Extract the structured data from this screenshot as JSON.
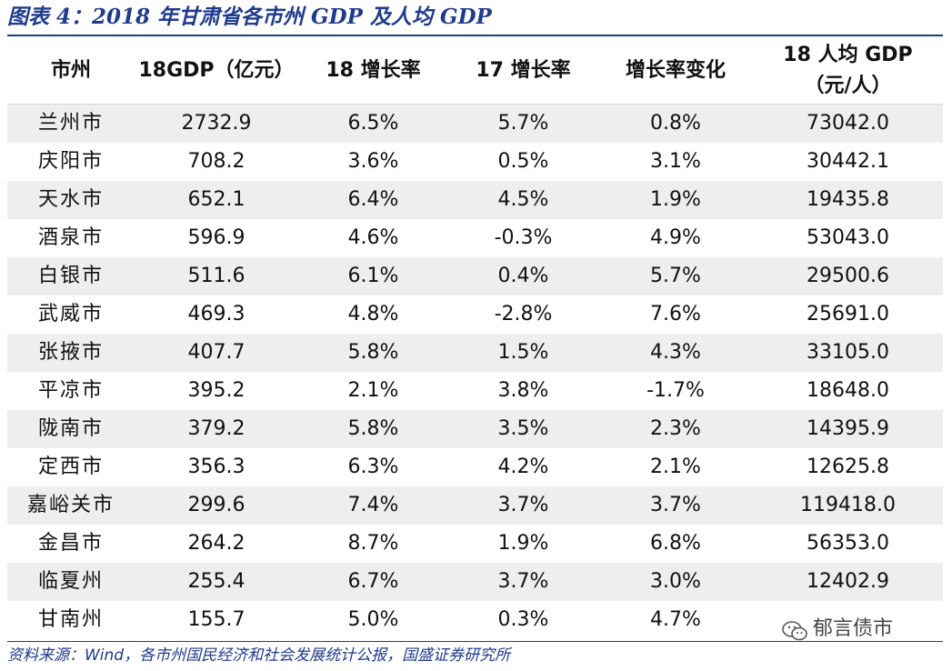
{
  "title": "图表 4：2018 年甘肃省各市州 GDP 及人均 GDP",
  "table": {
    "headers": [
      "市州",
      "18GDP（亿元）",
      "18 增长率",
      "17 增长率",
      "增长率变化"
    ],
    "header_last_line1": "18 人均 GDP",
    "header_last_line2": "（元/人）",
    "rows": [
      [
        "兰州市",
        "2732.9",
        "6.5%",
        "5.7%",
        "0.8%",
        "73042.0"
      ],
      [
        "庆阳市",
        "708.2",
        "3.6%",
        "0.5%",
        "3.1%",
        "30442.1"
      ],
      [
        "天水市",
        "652.1",
        "6.4%",
        "4.5%",
        "1.9%",
        "19435.8"
      ],
      [
        "酒泉市",
        "596.9",
        "4.6%",
        "-0.3%",
        "4.9%",
        "53043.0"
      ],
      [
        "白银市",
        "511.6",
        "6.1%",
        "0.4%",
        "5.7%",
        "29500.6"
      ],
      [
        "武威市",
        "469.3",
        "4.8%",
        "-2.8%",
        "7.6%",
        "25691.0"
      ],
      [
        "张掖市",
        "407.7",
        "5.8%",
        "1.5%",
        "4.3%",
        "33105.0"
      ],
      [
        "平凉市",
        "395.2",
        "2.1%",
        "3.8%",
        "-1.7%",
        "18648.0"
      ],
      [
        "陇南市",
        "379.2",
        "5.8%",
        "3.5%",
        "2.3%",
        "14395.9"
      ],
      [
        "定西市",
        "356.3",
        "6.3%",
        "4.2%",
        "2.1%",
        "12625.8"
      ],
      [
        "嘉峪关市",
        "299.6",
        "7.4%",
        "3.7%",
        "3.7%",
        "119418.0"
      ],
      [
        "金昌市",
        "264.2",
        "8.7%",
        "1.9%",
        "6.8%",
        "56353.0"
      ],
      [
        "临夏州",
        "255.4",
        "6.7%",
        "3.7%",
        "3.0%",
        "12402.9"
      ],
      [
        "甘南州",
        "155.7",
        "5.0%",
        "0.3%",
        "4.7%",
        ""
      ]
    ]
  },
  "source": "资料来源：Wind，各市州国民经济和社会发展统计公报，国盛证券研究所",
  "watermark": "郁言债市",
  "colors": {
    "accent": "#1f3b8c",
    "stripe": "#eeeeee"
  }
}
